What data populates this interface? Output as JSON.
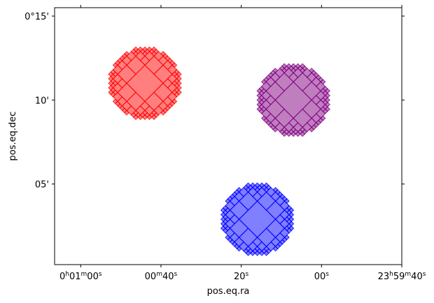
{
  "chart_data": {
    "type": "scatter",
    "xlabel": "pos.eq.ra",
    "ylabel": "pos.eq.dec",
    "x_ticks": [
      {
        "ra_sec": 60,
        "parts": [
          [
            "0",
            ""
          ],
          [
            "h",
            "sup"
          ],
          [
            "01",
            ""
          ],
          [
            "m",
            "sup"
          ],
          [
            "00",
            ""
          ],
          [
            "s",
            "sup"
          ]
        ]
      },
      {
        "ra_sec": 40,
        "parts": [
          [
            "00",
            ""
          ],
          [
            "m",
            "sup"
          ],
          [
            "40",
            ""
          ],
          [
            "s",
            "sup"
          ]
        ]
      },
      {
        "ra_sec": 20,
        "parts": [
          [
            "20",
            ""
          ],
          [
            "s",
            "sup"
          ]
        ]
      },
      {
        "ra_sec": 0,
        "parts": [
          [
            "00",
            ""
          ],
          [
            "s",
            "sup"
          ]
        ]
      },
      {
        "ra_sec": -20,
        "parts": [
          [
            "23",
            ""
          ],
          [
            "h",
            "sup"
          ],
          [
            "59",
            ""
          ],
          [
            "m",
            "sup"
          ],
          [
            "40",
            ""
          ],
          [
            "s",
            "sup"
          ]
        ]
      }
    ],
    "y_ticks": [
      {
        "dec_arcmin": 15,
        "label": "0°15'"
      },
      {
        "dec_arcmin": 10,
        "label": "10'"
      },
      {
        "dec_arcmin": 5,
        "label": "05'"
      }
    ],
    "xlim_ra_sec": [
      66.5,
      -20
    ],
    "ylim_dec_arcmin": [
      0.2,
      15.5
    ],
    "grid": false,
    "series": [
      {
        "color": "#ff0000",
        "fill_opacity": 0.5,
        "center_ra_sec": 44,
        "center_dec_arcmin": 11.0,
        "radius_arcmin": 2.1
      },
      {
        "color": "#800080",
        "fill_opacity": 0.5,
        "center_ra_sec": 7,
        "center_dec_arcmin": 10.0,
        "radius_arcmin": 2.1
      },
      {
        "color": "#0000ff",
        "fill_opacity": 0.5,
        "center_ra_sec": 16,
        "center_dec_arcmin": 2.9,
        "radius_arcmin": 2.1
      }
    ]
  }
}
